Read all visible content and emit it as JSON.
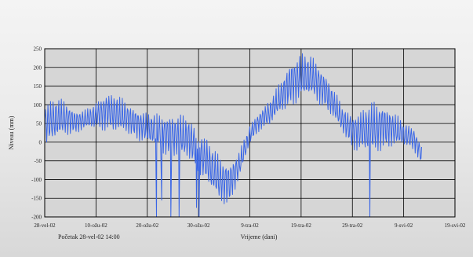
{
  "chart_data": {
    "type": "line",
    "title": "",
    "xlabel": "Vrijeme (dani)",
    "ylabel": "Niveau (mm)",
    "start_note": "Početak 28-vel-02 14:00",
    "x_ticks": [
      "28-vel-02",
      "10-ožu-02",
      "20-ožu-02",
      "30-ožu-02",
      "9-tra-02",
      "19-tra-02",
      "29-tra-02",
      "9-svi-02",
      "19-svi-02"
    ],
    "y_ticks": [
      "250",
      "200",
      "150",
      "100",
      "50",
      "0",
      "-50",
      "-100",
      "-150",
      "-200"
    ],
    "ylim": [
      -200,
      250
    ],
    "xlim_days": [
      0,
      80
    ],
    "grid": true,
    "legend": "none",
    "line_color": "#3a66e6",
    "series": [
      {
        "values_x_days": [
          0,
          2,
          4,
          6,
          8,
          10,
          12,
          14,
          16,
          18,
          20,
          22,
          24,
          26,
          28,
          30,
          32,
          34,
          36,
          38,
          40,
          42,
          44,
          46,
          48,
          50,
          52,
          54,
          56,
          58,
          60,
          62,
          64,
          66,
          68,
          70,
          72,
          73.5
        ],
        "mean": [
          50,
          60,
          65,
          55,
          60,
          70,
          85,
          75,
          65,
          50,
          35,
          30,
          20,
          15,
          10,
          -20,
          -60,
          -100,
          -110,
          -60,
          20,
          60,
          80,
          120,
          160,
          175,
          175,
          150,
          110,
          60,
          30,
          30,
          35,
          45,
          35,
          20,
          10,
          -35
        ],
        "amplitude": [
          55,
          55,
          45,
          30,
          25,
          35,
          50,
          50,
          40,
          40,
          40,
          45,
          55,
          55,
          55,
          55,
          60,
          60,
          55,
          35,
          25,
          25,
          35,
          40,
          60,
          60,
          55,
          50,
          40,
          35,
          45,
          55,
          70,
          60,
          45,
          30,
          30,
          25
        ]
      }
    ],
    "dips": [
      {
        "x_days": 21.8,
        "y": -200
      },
      {
        "x_days": 22.8,
        "y": -155
      },
      {
        "x_days": 24.6,
        "y": -200
      },
      {
        "x_days": 26.2,
        "y": -200
      },
      {
        "x_days": 29.6,
        "y": -175
      },
      {
        "x_days": 30.1,
        "y": -200
      },
      {
        "x_days": 63.4,
        "y": -200
      }
    ]
  }
}
